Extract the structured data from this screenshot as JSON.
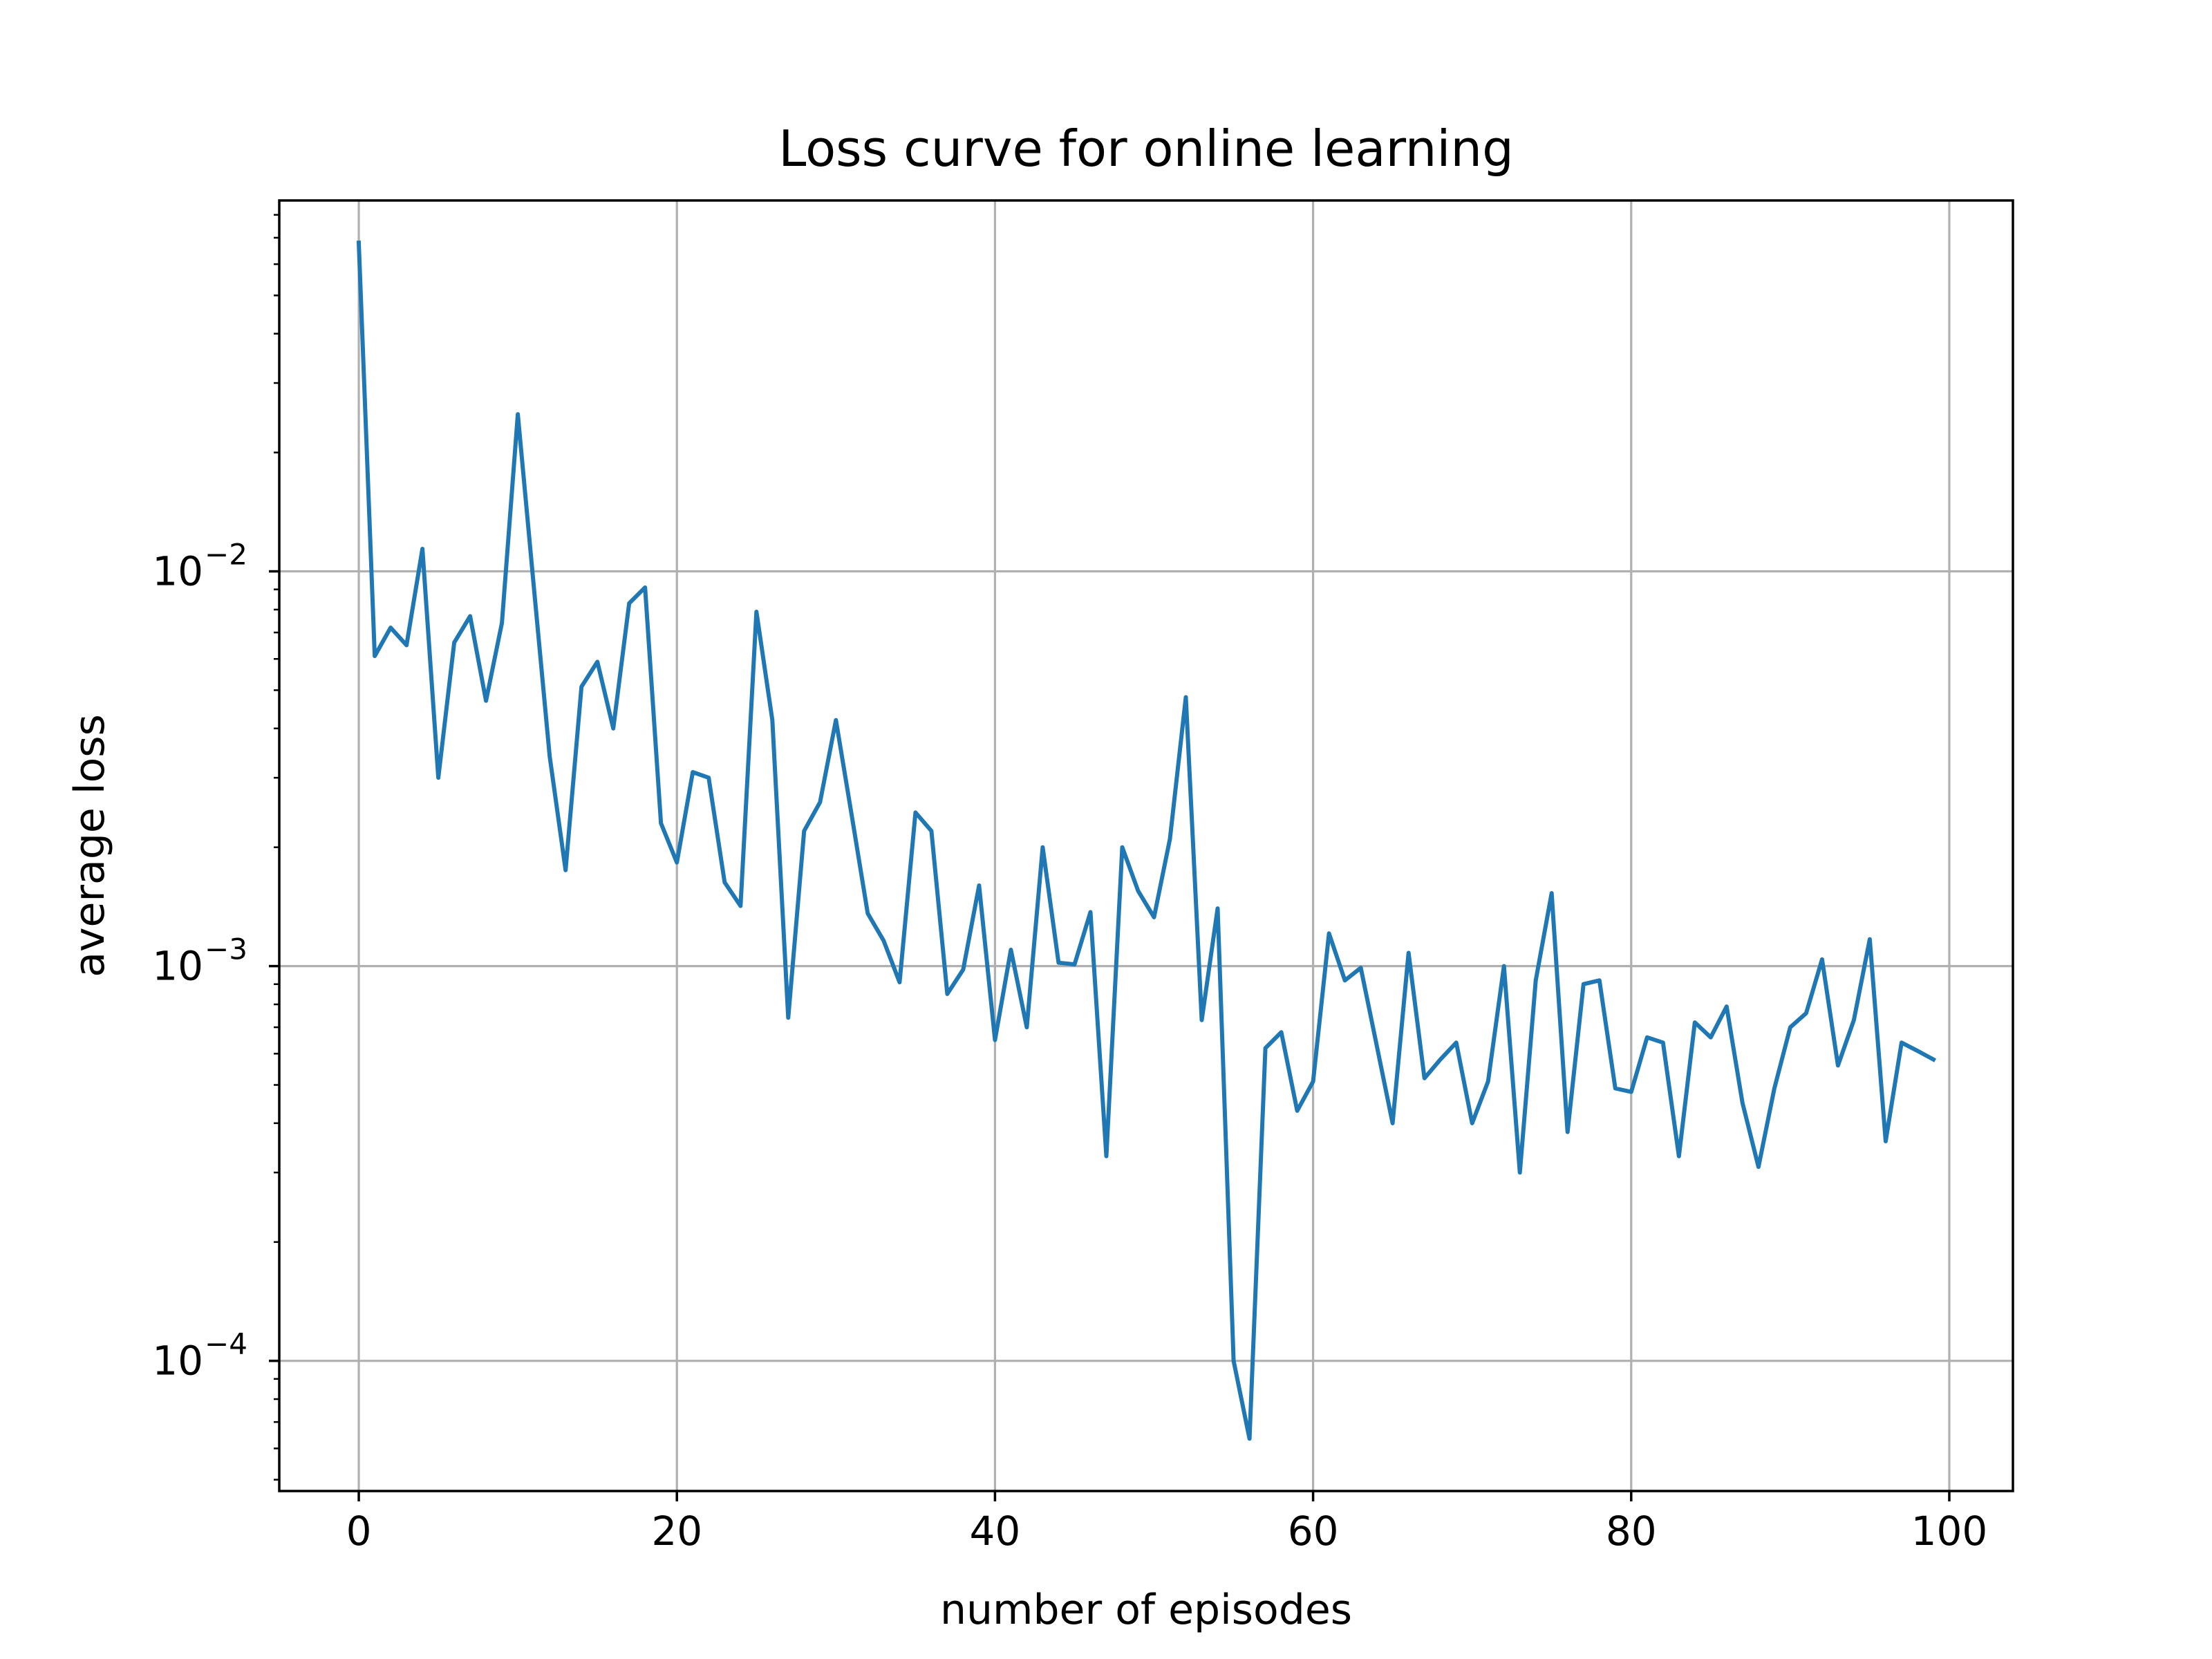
{
  "chart_data": {
    "type": "line",
    "title": "Loss curve for online learning",
    "xlabel": "number of episodes",
    "ylabel": "average loss",
    "yscale": "log",
    "grid": true,
    "xlim": [
      -5,
      104
    ],
    "ylim": [
      4.68e-05,
      0.087
    ],
    "xticks": [
      0,
      20,
      40,
      60,
      80,
      100
    ],
    "xtick_labels": [
      "0",
      "20",
      "40",
      "60",
      "80",
      "100"
    ],
    "yticks": [
      {
        "value": 0.0001,
        "base": "10",
        "exp": "−4"
      },
      {
        "value": 0.001,
        "base": "10",
        "exp": "−3"
      },
      {
        "value": 0.01,
        "base": "10",
        "exp": "−2"
      }
    ],
    "series": [
      {
        "color": "#1f77b4",
        "x": [
          0,
          1,
          2,
          3,
          4,
          5,
          6,
          7,
          8,
          9,
          10,
          11,
          12,
          13,
          14,
          15,
          16,
          17,
          18,
          19,
          20,
          21,
          22,
          23,
          24,
          25,
          26,
          27,
          28,
          29,
          30,
          31,
          32,
          33,
          34,
          35,
          36,
          37,
          38,
          39,
          40,
          41,
          42,
          43,
          44,
          45,
          46,
          47,
          48,
          49,
          50,
          51,
          52,
          53,
          54,
          55,
          56,
          57,
          58,
          59,
          60,
          61,
          62,
          63,
          64,
          65,
          66,
          67,
          68,
          69,
          70,
          71,
          72,
          73,
          74,
          75,
          76,
          77,
          78,
          79,
          80,
          81,
          82,
          83,
          84,
          85,
          86,
          87,
          88,
          89,
          90,
          91,
          92,
          93,
          94,
          95,
          96,
          97,
          98,
          99
        ],
        "y": [
          0.068,
          0.0061,
          0.0072,
          0.0065,
          0.0114,
          0.003,
          0.0066,
          0.0077,
          0.0047,
          0.0074,
          0.025,
          0.0092,
          0.0034,
          0.00175,
          0.0051,
          0.0059,
          0.004,
          0.0083,
          0.0091,
          0.0023,
          0.00183,
          0.0031,
          0.003,
          0.00163,
          0.00142,
          0.0079,
          0.0042,
          0.00074,
          0.0022,
          0.0026,
          0.0042,
          0.0024,
          0.00136,
          0.00116,
          0.00091,
          0.00245,
          0.0022,
          0.00085,
          0.00098,
          0.0016,
          0.00065,
          0.0011,
          0.0007,
          0.002,
          0.00102,
          0.00101,
          0.00137,
          0.00033,
          0.002,
          0.00155,
          0.00133,
          0.0021,
          0.0048,
          0.00073,
          0.0014,
          0.0001,
          6.35e-05,
          0.00062,
          0.00068,
          0.00043,
          0.00051,
          0.00121,
          0.00092,
          0.00099,
          0.00063,
          0.0004,
          0.00108,
          0.00052,
          0.00058,
          0.00064,
          0.0004,
          0.00051,
          0.001,
          0.0003,
          0.00092,
          0.00153,
          0.00038,
          0.0009,
          0.00092,
          0.00049,
          0.00048,
          0.00066,
          0.00064,
          0.00033,
          0.00072,
          0.00066,
          0.00079,
          0.00045,
          0.00031,
          0.00049,
          0.0007,
          0.00076,
          0.00104,
          0.00056,
          0.00073,
          0.00117,
          0.00036,
          0.00064,
          0.00061,
          0.00058
        ]
      }
    ]
  }
}
